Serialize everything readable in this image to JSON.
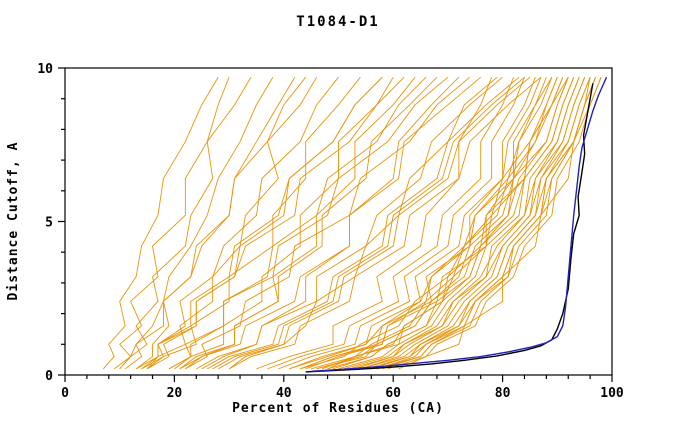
{
  "page": {
    "background": "#ffffff"
  },
  "chart_data": {
    "type": "line",
    "title": "T1084-D1",
    "xlabel": "Percent of Residues (CA)",
    "ylabel": "Distance Cutoff, A",
    "xlim": [
      0,
      100
    ],
    "ylim": [
      0,
      10
    ],
    "x_ticks": {
      "major": [
        0,
        20,
        40,
        60,
        80,
        100
      ],
      "minor_step": 4
    },
    "y_ticks": {
      "major": [
        0,
        5,
        10
      ],
      "minor_step": 1
    },
    "grid": false,
    "legend": "none",
    "styles": {
      "model_color": "#E8940A",
      "highlight_blue": "#2121B5",
      "highlight_black": "#000000",
      "frame_color": "#000000",
      "background": "#ffffff"
    },
    "y_levels": [
      0.2,
      0.6,
      1.0,
      1.6,
      2.4,
      3.2,
      4.2,
      5.2,
      6.4,
      7.6,
      8.8,
      9.7
    ],
    "model_series_x": [
      [
        7,
        9,
        8,
        11,
        10,
        13,
        14,
        17,
        18,
        22,
        25,
        28
      ],
      [
        9,
        12,
        10,
        14,
        12,
        17,
        16,
        22,
        22,
        26,
        28,
        30
      ],
      [
        10,
        12,
        15,
        13,
        17,
        16,
        22,
        23,
        27,
        26,
        31,
        34
      ],
      [
        10,
        12,
        13,
        16,
        18,
        19,
        23,
        26,
        28,
        32,
        35,
        38
      ],
      [
        13,
        16,
        16,
        19,
        18,
        23,
        25,
        30,
        31,
        35,
        39,
        42
      ],
      [
        15,
        17,
        22,
        21,
        27,
        27,
        32,
        33,
        39,
        37,
        43,
        46
      ],
      [
        14,
        17,
        17,
        22,
        21,
        27,
        29,
        35,
        36,
        43,
        46,
        50
      ],
      [
        15,
        18,
        24,
        23,
        30,
        30,
        38,
        38,
        44,
        44,
        50,
        54
      ],
      [
        15,
        19,
        18,
        24,
        24,
        31,
        32,
        40,
        41,
        49,
        53,
        58
      ],
      [
        11,
        14,
        13,
        18,
        18,
        23,
        24,
        30,
        31,
        37,
        40,
        44
      ],
      [
        13,
        17,
        17,
        23,
        23,
        30,
        31,
        39,
        41,
        49,
        53,
        58
      ],
      [
        20,
        23,
        29,
        29,
        36,
        36,
        43,
        43,
        50,
        50,
        57,
        60
      ],
      [
        14,
        18,
        17,
        24,
        24,
        31,
        33,
        42,
        43,
        52,
        57,
        62
      ],
      [
        22,
        25,
        31,
        31,
        39,
        38,
        46,
        46,
        53,
        53,
        60,
        64
      ],
      [
        19,
        23,
        22,
        29,
        29,
        37,
        38,
        46,
        48,
        57,
        61,
        66
      ],
      [
        21,
        24,
        31,
        31,
        39,
        39,
        47,
        47,
        55,
        56,
        63,
        68
      ],
      [
        19,
        23,
        23,
        29,
        29,
        38,
        39,
        48,
        50,
        59,
        64,
        70
      ],
      [
        25,
        29,
        35,
        36,
        44,
        44,
        52,
        52,
        60,
        61,
        67,
        72
      ],
      [
        22,
        26,
        25,
        32,
        33,
        41,
        42,
        52,
        54,
        63,
        68,
        74
      ],
      [
        21,
        25,
        32,
        33,
        42,
        43,
        52,
        52,
        61,
        62,
        70,
        76
      ],
      [
        35,
        41,
        49,
        49,
        58,
        57,
        65,
        66,
        72,
        72,
        76,
        78
      ],
      [
        30,
        33,
        40,
        44,
        46,
        53,
        55,
        61,
        63,
        70,
        73,
        79
      ],
      [
        24,
        28,
        35,
        36,
        46,
        46,
        55,
        57,
        65,
        67,
        74,
        80
      ],
      [
        37,
        43,
        51,
        52,
        61,
        60,
        68,
        69,
        76,
        76,
        80,
        82
      ],
      [
        26,
        30,
        38,
        39,
        48,
        49,
        58,
        59,
        68,
        70,
        77,
        83
      ],
      [
        39,
        45,
        53,
        54,
        63,
        62,
        70,
        71,
        78,
        78,
        82,
        84
      ],
      [
        27,
        31,
        39,
        40,
        49,
        50,
        59,
        60,
        69,
        71,
        78,
        84
      ],
      [
        28,
        32,
        40,
        41,
        50,
        51,
        60,
        61,
        70,
        72,
        79,
        85
      ],
      [
        41,
        47,
        55,
        56,
        65,
        64,
        72,
        73,
        80,
        80,
        84,
        86
      ],
      [
        30,
        34,
        42,
        43,
        52,
        53,
        62,
        63,
        72,
        74,
        81,
        87
      ],
      [
        44,
        50,
        58,
        59,
        66,
        67,
        74,
        74,
        80,
        81,
        85,
        87
      ],
      [
        43,
        49,
        57,
        58,
        67,
        66,
        74,
        75,
        82,
        82,
        86,
        88
      ],
      [
        41,
        48,
        55,
        58,
        65,
        67,
        73,
        75,
        81,
        83,
        86,
        89
      ],
      [
        48,
        53,
        61,
        62,
        69,
        70,
        76,
        77,
        82,
        83,
        87,
        89
      ],
      [
        45,
        53,
        56,
        63,
        66,
        71,
        73,
        79,
        81,
        86,
        88,
        90
      ],
      [
        43,
        51,
        54,
        61,
        64,
        70,
        73,
        78,
        80,
        85,
        88,
        90
      ],
      [
        47,
        53,
        60,
        62,
        69,
        71,
        77,
        78,
        84,
        85,
        89,
        91
      ],
      [
        46,
        54,
        57,
        64,
        67,
        72,
        74,
        80,
        82,
        86,
        89,
        91
      ],
      [
        49,
        56,
        59,
        66,
        68,
        74,
        76,
        81,
        83,
        88,
        90,
        92
      ],
      [
        46,
        55,
        57,
        64,
        67,
        73,
        75,
        81,
        82,
        88,
        90,
        92
      ],
      [
        43,
        49,
        58,
        59,
        68,
        69,
        77,
        77,
        84,
        85,
        89,
        92
      ],
      [
        50,
        58,
        61,
        67,
        70,
        75,
        77,
        83,
        84,
        89,
        91,
        93
      ],
      [
        48,
        56,
        59,
        66,
        69,
        74,
        76,
        82,
        84,
        89,
        91,
        93
      ],
      [
        52,
        60,
        62,
        69,
        71,
        77,
        78,
        84,
        85,
        90,
        92,
        94
      ],
      [
        51,
        59,
        62,
        68,
        71,
        76,
        79,
        84,
        86,
        90,
        92,
        94
      ],
      [
        54,
        61,
        64,
        70,
        73,
        78,
        80,
        85,
        86,
        91,
        93,
        95
      ],
      [
        53,
        60,
        63,
        69,
        72,
        77,
        80,
        85,
        87,
        91,
        93,
        95
      ],
      [
        56,
        63,
        65,
        72,
        74,
        79,
        81,
        86,
        87,
        92,
        94,
        96
      ],
      [
        57,
        65,
        67,
        73,
        75,
        81,
        82,
        87,
        89,
        93,
        95,
        97
      ],
      [
        54,
        62,
        65,
        71,
        74,
        79,
        81,
        86,
        88,
        92,
        94,
        96
      ],
      [
        58,
        65,
        67,
        74,
        76,
        81,
        83,
        88,
        89,
        93,
        95,
        97
      ],
      [
        55,
        63,
        66,
        72,
        75,
        80,
        82,
        87,
        88,
        93,
        95,
        96
      ],
      [
        59,
        66,
        68,
        75,
        77,
        82,
        84,
        89,
        90,
        94,
        96,
        98
      ],
      [
        57,
        64,
        66,
        73,
        75,
        80,
        82,
        87,
        88,
        93,
        95,
        97
      ],
      [
        61,
        66,
        72,
        73,
        80,
        80,
        86,
        87,
        92,
        93,
        96,
        98
      ]
    ],
    "highlight_series": [
      {
        "color_key": "highlight_black",
        "points": [
          [
            44,
            0.1
          ],
          [
            53,
            0.18
          ],
          [
            60,
            0.26
          ],
          [
            67,
            0.36
          ],
          [
            73,
            0.48
          ],
          [
            79,
            0.62
          ],
          [
            84,
            0.8
          ],
          [
            87,
            0.95
          ],
          [
            89,
            1.15
          ],
          [
            90,
            1.5
          ],
          [
            91,
            2.0
          ],
          [
            92,
            2.8
          ],
          [
            92.5,
            3.8
          ],
          [
            93,
            4.6
          ],
          [
            94,
            5.2
          ],
          [
            93.8,
            5.8
          ],
          [
            94.5,
            6.6
          ],
          [
            95,
            7.2
          ],
          [
            94.8,
            7.8
          ],
          [
            95.5,
            8.5
          ],
          [
            96,
            9.0
          ],
          [
            96.5,
            9.5
          ]
        ]
      },
      {
        "color_key": "highlight_blue",
        "points": [
          [
            45,
            0.12
          ],
          [
            52,
            0.2
          ],
          [
            58,
            0.28
          ],
          [
            64,
            0.38
          ],
          [
            70,
            0.48
          ],
          [
            76,
            0.6
          ],
          [
            81,
            0.75
          ],
          [
            85,
            0.9
          ],
          [
            88,
            1.05
          ],
          [
            90,
            1.25
          ],
          [
            91,
            1.6
          ],
          [
            91.5,
            2.2
          ],
          [
            92,
            3.2
          ],
          [
            92.5,
            4.2
          ],
          [
            93,
            5.2
          ],
          [
            93.5,
            6.0
          ],
          [
            94,
            6.8
          ],
          [
            94.5,
            7.4
          ],
          [
            95.5,
            8.0
          ],
          [
            96.5,
            8.6
          ],
          [
            97.5,
            9.1
          ],
          [
            98.5,
            9.5
          ],
          [
            99,
            9.7
          ]
        ]
      }
    ]
  }
}
